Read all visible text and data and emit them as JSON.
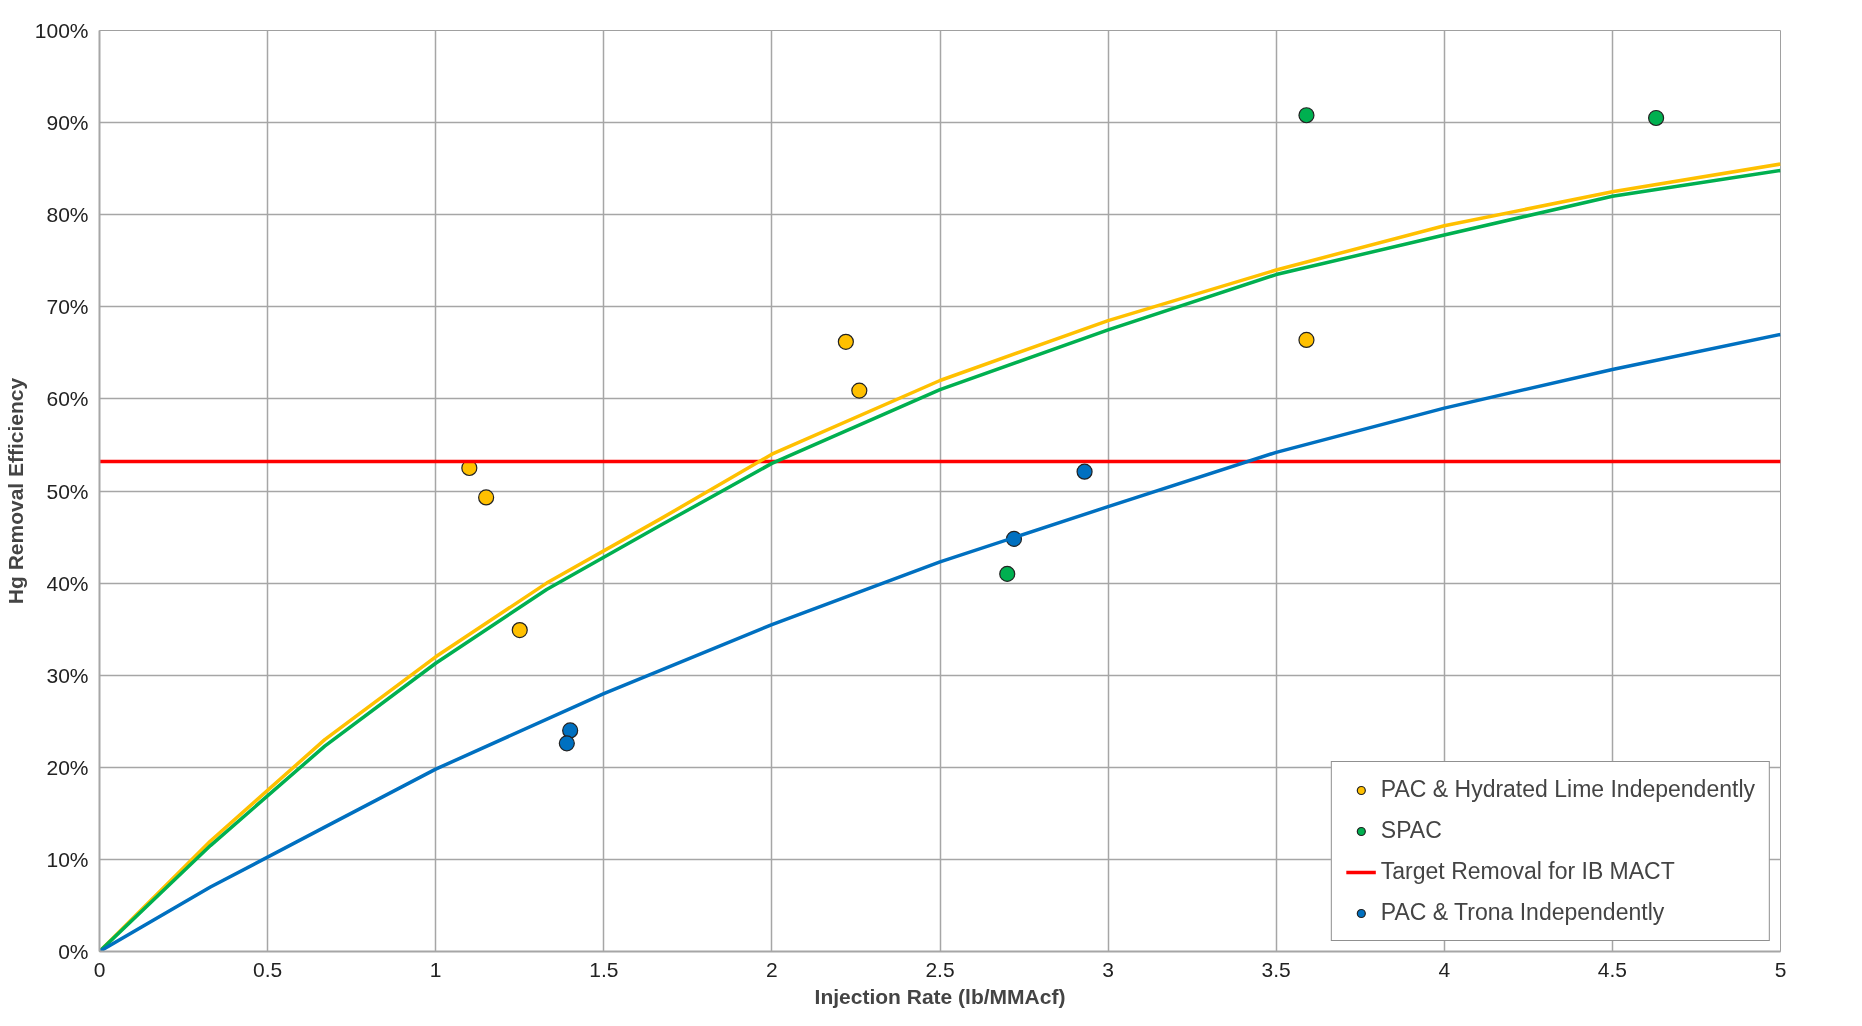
{
  "chart_data": {
    "type": "line",
    "xlabel": "Injection Rate (lb/MMAcf)",
    "ylabel": "Hg Removal Efficiency",
    "xlim": [
      0,
      5
    ],
    "xticks": [
      0,
      0.5,
      1,
      1.5,
      2,
      2.5,
      3,
      3.5,
      4,
      4.5,
      5
    ],
    "ylim": [
      0,
      100
    ],
    "yticks": [
      {
        "value": 0,
        "label": "0%"
      },
      {
        "value": 10,
        "label": "10%"
      },
      {
        "value": 20,
        "label": "20%"
      },
      {
        "value": 30,
        "label": "30%"
      },
      {
        "value": 40,
        "label": "40%"
      },
      {
        "value": 50,
        "label": "50%"
      },
      {
        "value": 60,
        "label": "60%"
      },
      {
        "value": 70,
        "label": "70%"
      },
      {
        "value": 80,
        "label": "80%"
      },
      {
        "value": 90,
        "label": "90%"
      },
      {
        "value": 100,
        "label": "100%"
      }
    ],
    "grid": true,
    "legend": "bottom right",
    "series": [
      {
        "name": "PAC & Hydrated Lime Independently",
        "type": "scatter",
        "marker": "circle",
        "color": "#ffc000",
        "x": [
          1.1,
          1.15,
          1.25,
          2.22,
          2.26,
          3.59
        ],
        "values": [
          52.5,
          49.3,
          34.9,
          66.2,
          60.9,
          66.4
        ]
      },
      {
        "name": "SPAC",
        "type": "scatter",
        "marker": "circle",
        "color": "#00b050",
        "x": [
          3.59,
          4.63,
          2.7
        ],
        "values": [
          90.8,
          90.5,
          41.0
        ]
      },
      {
        "name": "Target Removal for IB MACT",
        "color": "#ff0000",
        "x": [
          0,
          5
        ],
        "values": [
          53.2,
          53.2
        ]
      },
      {
        "name": "PAC & Trona Independently",
        "type": "scatter",
        "marker": "circle",
        "color": "#0070c0",
        "x": [
          1.4,
          1.39,
          2.72,
          2.93
        ],
        "values": [
          24.0,
          22.6,
          44.8,
          52.1
        ]
      },
      {
        "color": "#ffc000",
        "x": [
          0,
          0.33,
          0.67,
          1,
          1.33,
          1.67,
          2,
          2.5,
          3,
          3.5,
          4,
          4.5,
          5
        ],
        "values": [
          0,
          12,
          23,
          32,
          40,
          47,
          54,
          62,
          68.5,
          74,
          78.8,
          82.5,
          85.5
        ]
      },
      {
        "color": "#00b050",
        "x": [
          0,
          0.33,
          0.67,
          1,
          1.33,
          1.67,
          2,
          2.5,
          3,
          3.5,
          4,
          4.5,
          5
        ],
        "values": [
          0,
          11.5,
          22.3,
          31.3,
          39.3,
          46.3,
          53,
          61,
          67.5,
          73.5,
          77.8,
          82,
          84.8
        ]
      },
      {
        "color": "#0070c0",
        "x": [
          0,
          0.33,
          0.67,
          1,
          1.5,
          2,
          2.5,
          3,
          3.5,
          4,
          4.5,
          5
        ],
        "values": [
          0,
          7,
          13.5,
          19.8,
          28,
          35.5,
          42.3,
          48.3,
          54.2,
          59,
          63.2,
          67
        ]
      }
    ]
  }
}
